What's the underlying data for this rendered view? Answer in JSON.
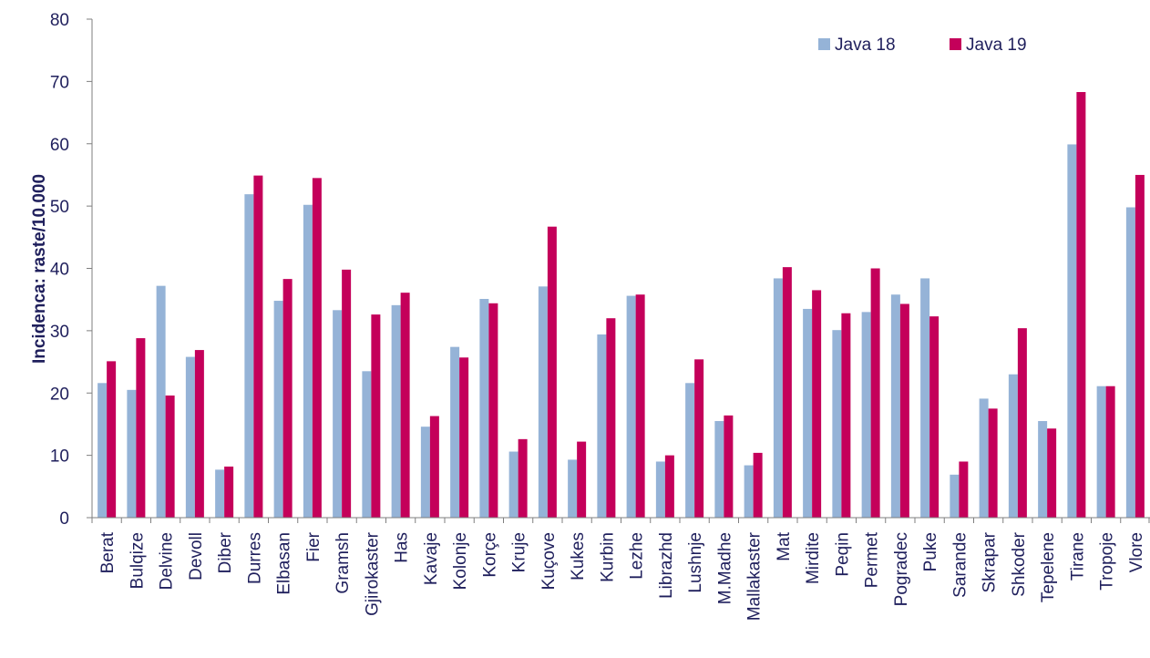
{
  "chart_data": {
    "type": "bar",
    "title": "",
    "xlabel": "",
    "ylabel": "Incidenca: raste/10.000",
    "ylim": [
      0,
      80
    ],
    "yticks": [
      "0",
      "10",
      "20",
      "30",
      "40",
      "50",
      "60",
      "70",
      "80"
    ],
    "grid": false,
    "legend_position": "top-right",
    "categories": [
      "Berat",
      "Bulqize",
      "Delvine",
      "Devoll",
      "Diber",
      "Durres",
      "Elbasan",
      "Fier",
      "Gramsh",
      "Gjirokaster",
      "Has",
      "Kavaje",
      "Kolonje",
      "Korçe",
      "Kruje",
      "Kuçove",
      "Kukes",
      "Kurbin",
      "Lezhe",
      "Librazhd",
      "Lushnje",
      "M.Madhe",
      "Mallakaster",
      "Mat",
      "Mirdite",
      "Peqin",
      "Permet",
      "Pogradec",
      "Puke",
      "Sarande",
      "Skrapar",
      "Shkoder",
      "Tepelene",
      "Tirane",
      "Tropoje",
      "Vlore"
    ],
    "series": [
      {
        "name": "Java 18",
        "color": "#95b3d7",
        "values": [
          21.6,
          20.5,
          37.2,
          25.8,
          7.7,
          51.9,
          34.8,
          50.2,
          33.3,
          23.5,
          34.1,
          14.6,
          27.4,
          35.1,
          10.6,
          37.1,
          9.3,
          29.4,
          35.6,
          9.0,
          21.6,
          15.5,
          8.4,
          38.4,
          33.5,
          30.1,
          33.0,
          35.8,
          38.4,
          6.9,
          19.1,
          23.0,
          15.5,
          59.9,
          21.1,
          49.8
        ]
      },
      {
        "name": "Java 19",
        "color": "#c4005a",
        "values": [
          25.1,
          28.8,
          19.6,
          26.9,
          8.2,
          54.9,
          38.3,
          54.5,
          39.8,
          32.6,
          36.1,
          16.3,
          25.7,
          34.4,
          12.6,
          46.7,
          12.2,
          32.0,
          35.8,
          10.0,
          25.4,
          16.4,
          10.4,
          40.2,
          36.5,
          32.8,
          40.0,
          34.3,
          32.3,
          9.0,
          17.5,
          30.4,
          14.3,
          68.3,
          21.1,
          55.0
        ]
      }
    ]
  }
}
